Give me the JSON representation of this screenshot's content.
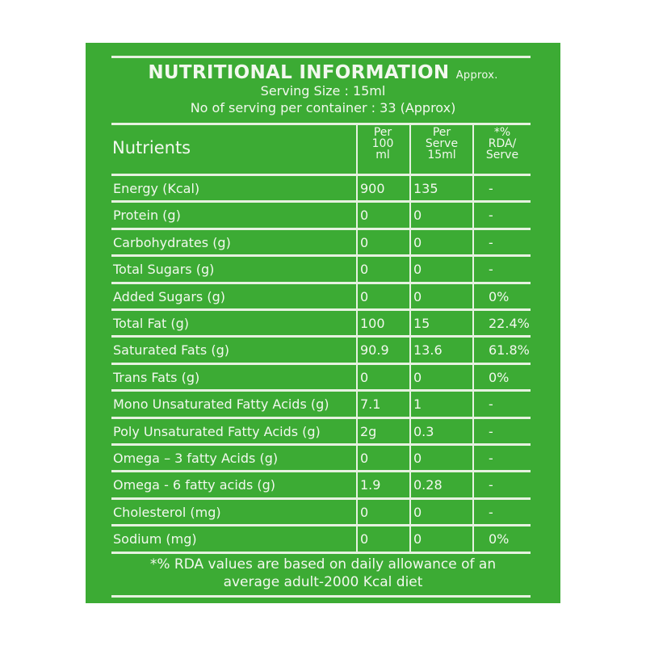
{
  "title": "NUTRITIONAL INFORMATION",
  "title_suffix": "Approx.",
  "serving_size": "Serving Size : 15ml",
  "servings_per_container": "No of serving per container : 33 (Approx)",
  "columns": {
    "nutrient": "Nutrients",
    "per100": [
      "Per",
      "100",
      "ml"
    ],
    "perServe": [
      "Per",
      "Serve",
      "15ml"
    ],
    "rda": [
      "*%",
      "RDA/",
      "Serve"
    ]
  },
  "rows": [
    [
      "Energy (Kcal)",
      "900",
      "135",
      "-"
    ],
    [
      "Protein (g)",
      "0",
      "0",
      "-"
    ],
    [
      "Carbohydrates (g)",
      "0",
      "0",
      "-"
    ],
    [
      "Total Sugars (g)",
      "0",
      "0",
      "-"
    ],
    [
      "Added Sugars (g)",
      "0",
      "0",
      "0%"
    ],
    [
      "Total Fat (g)",
      "100",
      "15",
      "22.4%"
    ],
    [
      "Saturated Fats (g)",
      "90.9",
      "13.6",
      "61.8%"
    ],
    [
      "Trans Fats (g)",
      "0",
      "0",
      "0%"
    ],
    [
      "Mono Unsaturated Fatty Acids (g)",
      "7.1",
      "1",
      "-"
    ],
    [
      "Poly Unsaturated Fatty Acids (g)",
      "2g",
      "0.3",
      "-"
    ],
    [
      "Omega – 3 fatty Acids (g)",
      "0",
      "0",
      "-"
    ],
    [
      "Omega - 6 fatty acids (g)",
      "1.9",
      "0.28",
      "-"
    ],
    [
      "Cholesterol (mg)",
      "0",
      "0",
      "-"
    ],
    [
      "Sodium (mg)",
      "0",
      "0",
      "0%"
    ]
  ],
  "footnote": [
    "*% RDA values are based on daily allowance of an",
    "average adult-2000 Kcal diet"
  ],
  "colors": {
    "background": "#3cab34",
    "text": "#f2f8ee"
  }
}
